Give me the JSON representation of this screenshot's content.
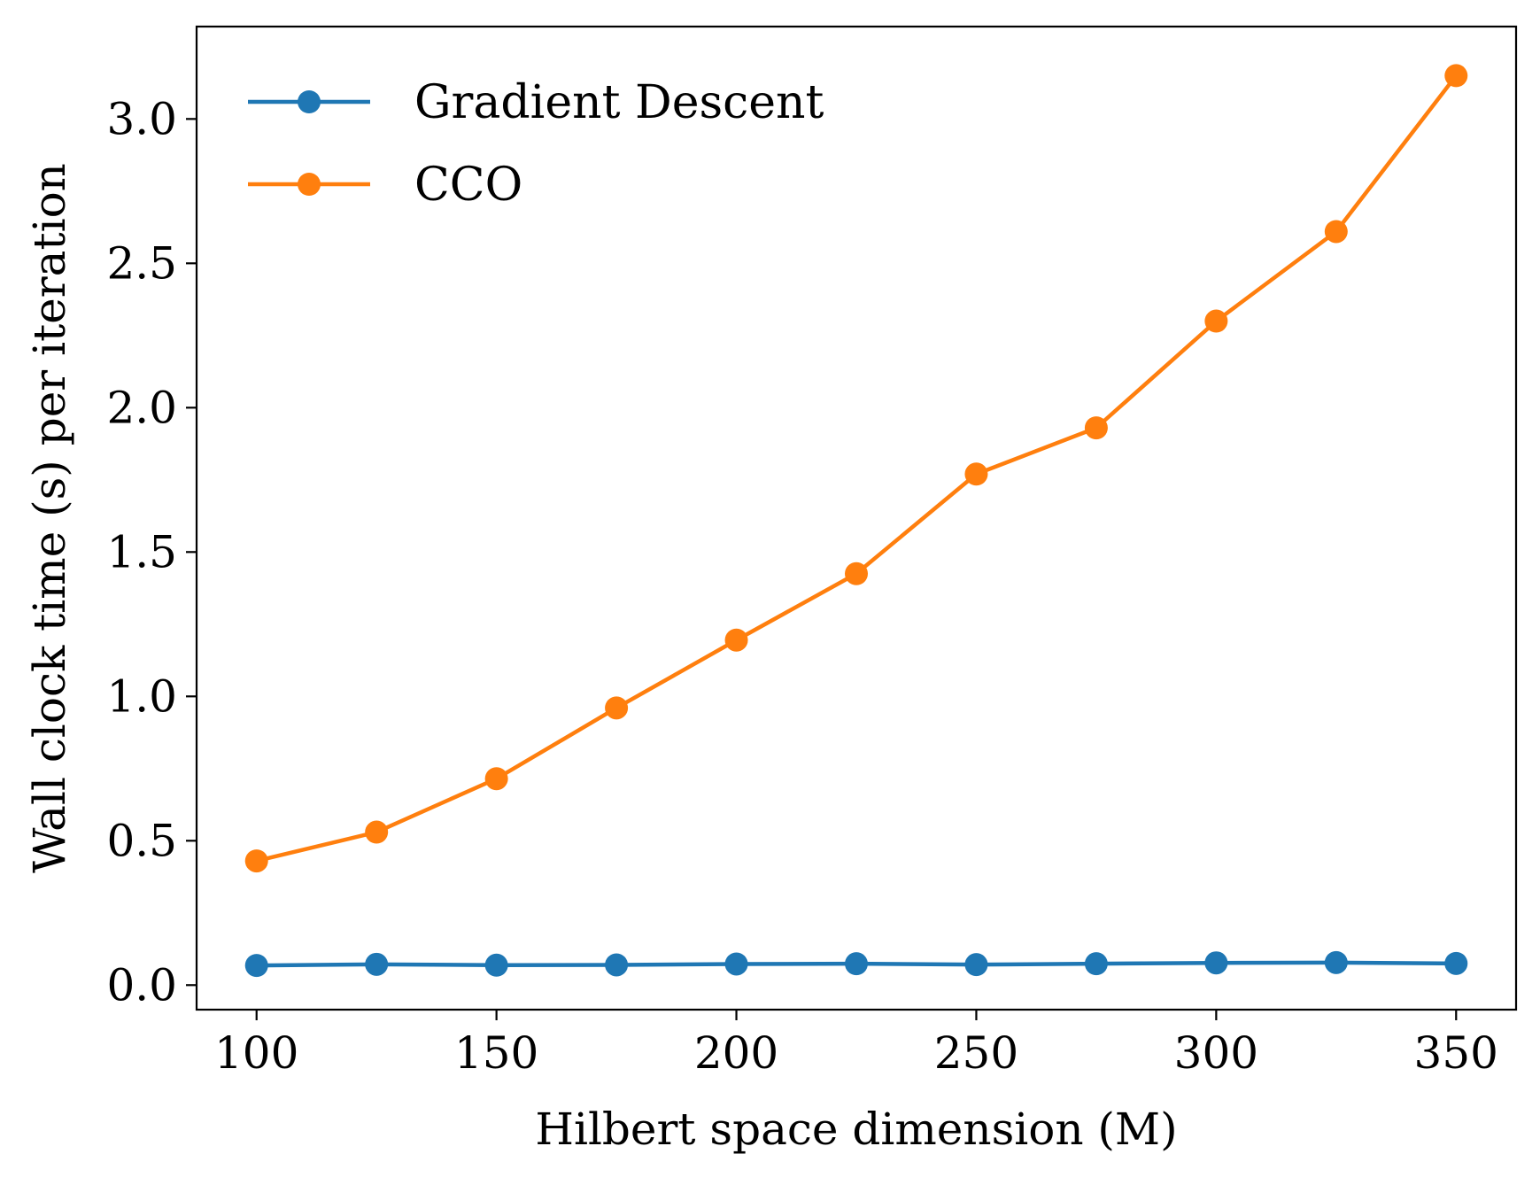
{
  "chart_data": {
    "type": "line",
    "title": "",
    "xlabel": "Hilbert space dimension (M)",
    "ylabel": "Wall clock time (s) per iteration",
    "x": [
      100,
      125,
      150,
      175,
      200,
      225,
      250,
      275,
      300,
      325,
      350
    ],
    "xlim": [
      87.5,
      362.5
    ],
    "ylim": [
      -0.085,
      3.32
    ],
    "xticks": [
      100,
      150,
      200,
      250,
      300,
      350
    ],
    "xtick_labels": [
      "100",
      "150",
      "200",
      "250",
      "300",
      "350"
    ],
    "yticks": [
      0.0,
      0.5,
      1.0,
      1.5,
      2.0,
      2.5,
      3.0
    ],
    "ytick_labels": [
      "0.0",
      "0.5",
      "1.0",
      "1.5",
      "2.0",
      "2.5",
      "3.0"
    ],
    "grid": false,
    "legend_position": "upper-left",
    "series": [
      {
        "name": "Gradient Descent",
        "color": "#1f77b4",
        "marker": "circle",
        "values": [
          0.068,
          0.072,
          0.069,
          0.07,
          0.073,
          0.074,
          0.071,
          0.074,
          0.077,
          0.078,
          0.075
        ]
      },
      {
        "name": "CCO",
        "color": "#ff7f0e",
        "marker": "circle",
        "values": [
          0.43,
          0.53,
          0.715,
          0.96,
          1.195,
          1.425,
          1.77,
          1.93,
          2.3,
          2.61,
          3.15
        ]
      }
    ]
  }
}
